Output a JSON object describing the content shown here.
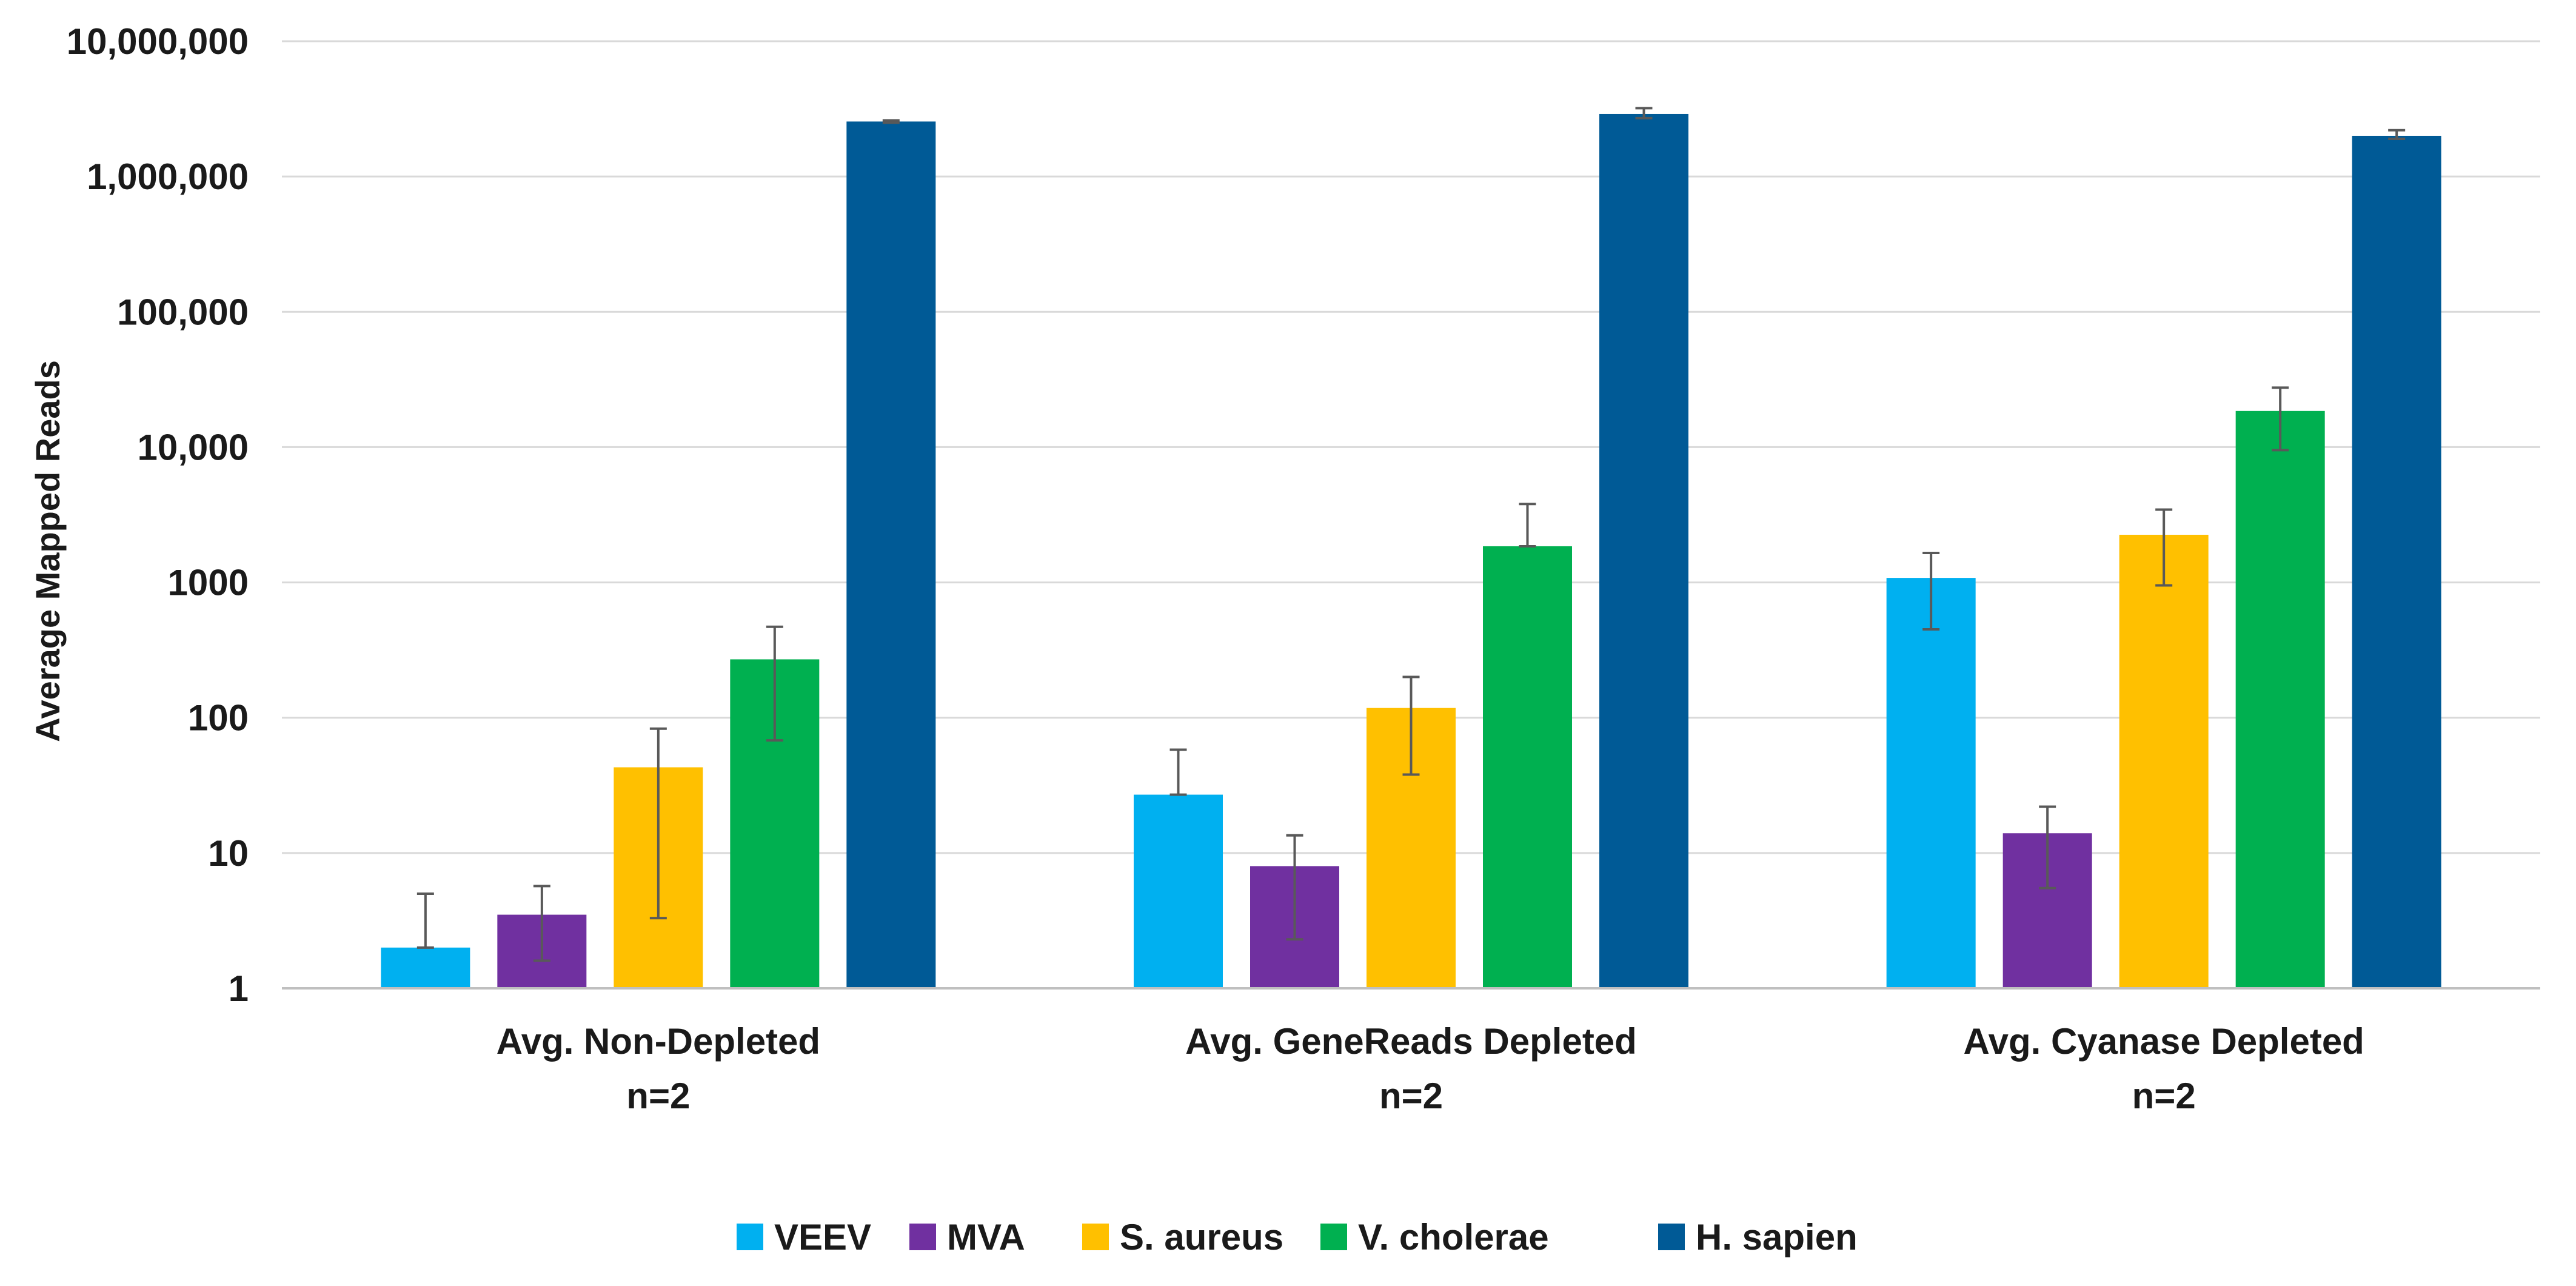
{
  "chart_data": {
    "type": "bar",
    "title": "",
    "xlabel": "",
    "ylabel": "Average Mapped Reads",
    "yscale": "log10",
    "ylim": [
      1,
      10000000
    ],
    "ytick_values": [
      1,
      10,
      100,
      1000,
      10000,
      100000,
      1000000,
      10000000
    ],
    "ytick_labels": [
      "1",
      "10",
      "100",
      "1000",
      "10,000",
      "100,000",
      "1,000,000",
      "10,000,000"
    ],
    "categories": [
      {
        "line1": "Avg. Non-Depleted",
        "line2": "n=2"
      },
      {
        "line1": "Avg. GeneReads Depleted",
        "line2": "n=2"
      },
      {
        "line1": "Avg. Cyanase Depleted",
        "line2": "n=2"
      }
    ],
    "series": [
      {
        "name": "VEEV",
        "color": "#00b0f0",
        "values": [
          2,
          27,
          1080
        ],
        "err_low": [
          2,
          27,
          450
        ],
        "err_high": [
          5,
          58,
          1650
        ]
      },
      {
        "name": "MVA",
        "color": "#7030a0",
        "values": [
          3.5,
          8,
          14
        ],
        "err_low": [
          1.6,
          2.3,
          5.5
        ],
        "err_high": [
          5.7,
          13.5,
          22
        ]
      },
      {
        "name": "S. aureus",
        "color": "#ffc000",
        "values": [
          43,
          118,
          2250
        ],
        "err_low": [
          3.3,
          38,
          950
        ],
        "err_high": [
          83,
          200,
          3450
        ]
      },
      {
        "name": "V. cholerae",
        "color": "#00b050",
        "values": [
          270,
          1850,
          18500
        ],
        "err_low": [
          68,
          1850,
          9500
        ],
        "err_high": [
          470,
          3800,
          27500
        ]
      },
      {
        "name": "H. sapien",
        "color": "#005a96",
        "values": [
          2550000,
          2900000,
          2000000
        ],
        "err_low": [
          2500000,
          2700000,
          1900000
        ],
        "err_high": [
          2600000,
          3200000,
          2200000
        ]
      }
    ],
    "grid": true,
    "legend_position": "bottom-center"
  }
}
